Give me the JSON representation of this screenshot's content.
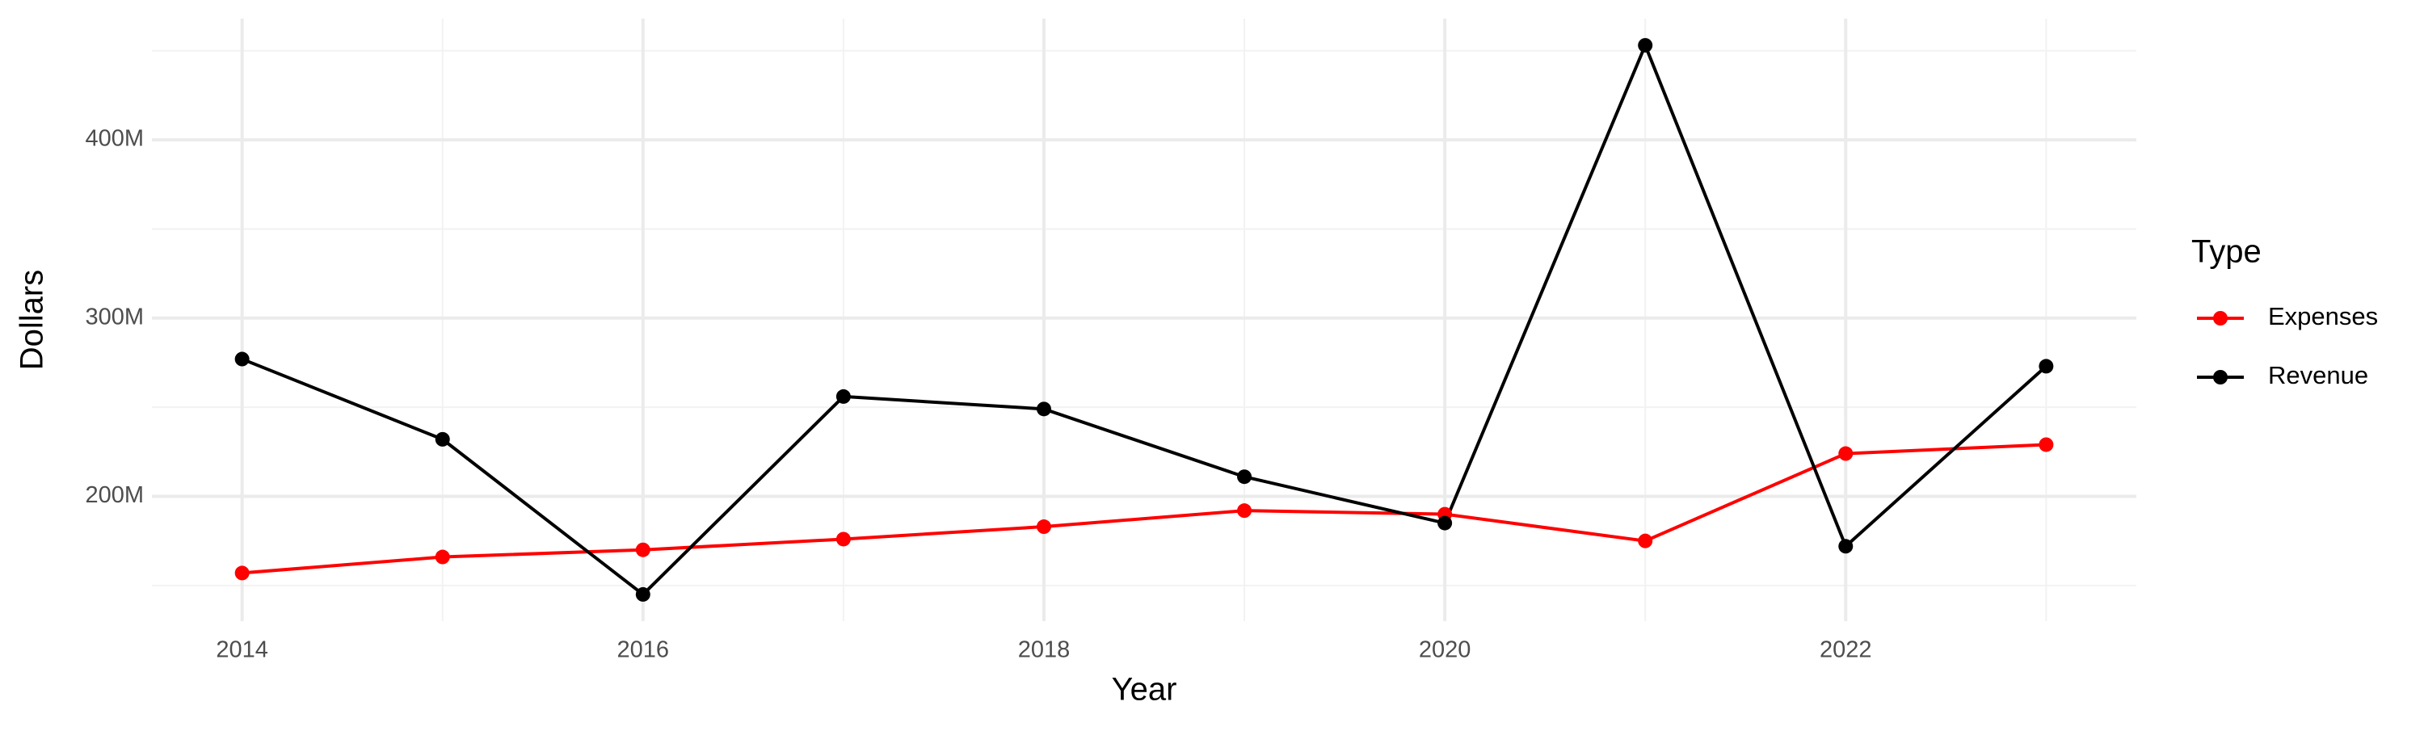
{
  "chart_data": {
    "type": "line",
    "x_label": "Year",
    "y_label": "Dollars",
    "legend_title": "Type",
    "legend_position": "right",
    "grid": true,
    "x": [
      2014,
      2015,
      2016,
      2017,
      2018,
      2019,
      2020,
      2021,
      2022,
      2023
    ],
    "xlim": [
      2013.55,
      2023.45
    ],
    "xticks": [
      2014,
      2016,
      2018,
      2020,
      2022
    ],
    "ylim": [
      130000000,
      468000000
    ],
    "yticks": [
      {
        "value": 200000000,
        "label": "200M"
      },
      {
        "value": 300000000,
        "label": "300M"
      },
      {
        "value": 400000000,
        "label": "400M"
      }
    ],
    "series": [
      {
        "name": "Expenses",
        "color": "#ff0000",
        "values": [
          157000000,
          166000000,
          170000000,
          176000000,
          183000000,
          192000000,
          190000000,
          175000000,
          224000000,
          229000000
        ]
      },
      {
        "name": "Revenue",
        "color": "#000000",
        "values": [
          277000000,
          232000000,
          145000000,
          256000000,
          249000000,
          211000000,
          185000000,
          453000000,
          172000000,
          273000000
        ]
      }
    ]
  }
}
